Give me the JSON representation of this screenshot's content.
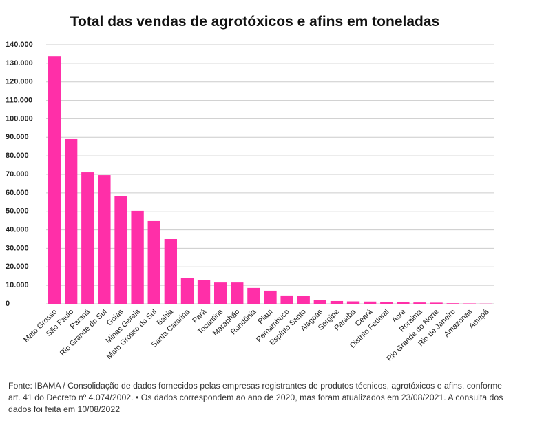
{
  "chart_data": {
    "type": "bar",
    "title": "Total das vendas de  agrotóxicos e afins em toneladas",
    "categories": [
      "Mato Grosso",
      "São Paulo",
      "Paraná",
      "Rio Grande do Sul",
      "Goiás",
      "Minas Gerais",
      "Mato Grosso do Sul",
      "Bahia",
      "Santa Catarina",
      "Pará",
      "Tocantins",
      "Maranhão",
      "Rondônia",
      "Piauí",
      "Pernambuco",
      "Espírito Santo",
      "Alagoas",
      "Sergipe",
      "Paraíba",
      "Ceará",
      "Distrito Federal",
      "Acre",
      "Roraima",
      "Rio Grande do Norte",
      "Rio de Janeiro",
      "Amazonas",
      "Amapá"
    ],
    "values": [
      133600,
      89000,
      71100,
      69600,
      58100,
      50300,
      44700,
      35000,
      13800,
      12700,
      11500,
      11500,
      8600,
      7100,
      4500,
      4100,
      1900,
      1500,
      1300,
      1200,
      1100,
      900,
      700,
      600,
      300,
      200,
      100
    ],
    "color": "#ff2fa8",
    "ylim": [
      0,
      140000
    ],
    "yticks": [
      0,
      {
        "value": 10000,
        "label": "10.000"
      },
      {
        "value": 20000,
        "label": "20.000"
      },
      {
        "value": 30000,
        "label": "30.000"
      },
      {
        "value": 40000,
        "label": "40.000"
      },
      {
        "value": 50000,
        "label": "50.000"
      },
      {
        "value": 60000,
        "label": "60.000"
      },
      {
        "value": 70000,
        "label": "70.000"
      },
      {
        "value": 80000,
        "label": "80.000"
      },
      {
        "value": 90000,
        "label": "90.000"
      },
      {
        "value": 100000,
        "label": "100.000"
      },
      {
        "value": 110000,
        "label": "110.000"
      },
      {
        "value": 120000,
        "label": "120.000"
      },
      {
        "value": 130000,
        "label": "130.000"
      },
      {
        "value": 140000,
        "label": "140.000"
      }
    ],
    "grid": true,
    "source": "Fonte: IBAMA / Consolidação de dados fornecidos pelas empresas registrantes de produtos técnicos, agrotóxicos e afins, conforme art. 41 do Decreto nº 4.074/2002. • Os dados correspondem ao ano de 2020, mas foram atualizados em 23/08/2021. A consulta dos dados foi feita em 10/08/2022"
  }
}
